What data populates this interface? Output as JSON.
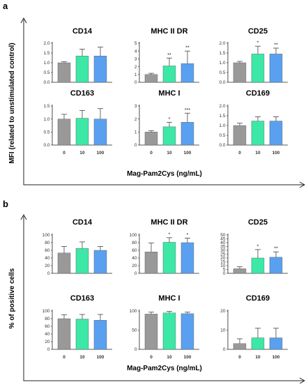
{
  "colors": {
    "control": "#999999",
    "dose10": "#3de8a7",
    "dose100": "#5aa0f0",
    "axis": "#222222",
    "error": "#444444"
  },
  "panels": [
    {
      "letter": "a",
      "ylabel": "MFI (related to unstimulated control)",
      "xlabel": "Mag-Pam2Cys (ng/mL)"
    },
    {
      "letter": "b",
      "ylabel": "% of positive cells",
      "xlabel": "Mag-Pam2Cys (ng/mL)"
    }
  ],
  "chart_data": [
    {
      "type": "bar",
      "panel": "a",
      "title": "CD14",
      "categories": [
        "0",
        "10",
        "100"
      ],
      "values": [
        1.0,
        1.35,
        1.35
      ],
      "errors": [
        0.05,
        0.35,
        0.45
      ],
      "annotations": [
        "",
        "",
        ""
      ],
      "ylim": [
        0,
        2.0
      ],
      "yticks": [
        "0.0",
        "0.5",
        "1.0",
        "1.5",
        "2.0"
      ],
      "ytick_values": [
        0,
        0.5,
        1.0,
        1.5,
        2.0
      ],
      "show_xticks": false
    },
    {
      "type": "bar",
      "panel": "a",
      "title": "MHC II DR",
      "categories": [
        "0",
        "10",
        "100"
      ],
      "values": [
        1.0,
        2.1,
        2.4
      ],
      "errors": [
        0.15,
        1.0,
        1.6
      ],
      "annotations": [
        "",
        "**",
        "**"
      ],
      "ylim": [
        0,
        5
      ],
      "yticks": [
        "0",
        "1",
        "2",
        "3",
        "4",
        "5"
      ],
      "ytick_values": [
        0,
        1,
        2,
        3,
        4,
        5
      ],
      "show_xticks": false
    },
    {
      "type": "bar",
      "panel": "a",
      "title": "CD25",
      "categories": [
        "0",
        "10",
        "100"
      ],
      "values": [
        1.0,
        1.45,
        1.45
      ],
      "errors": [
        0.07,
        0.4,
        0.3
      ],
      "annotations": [
        "",
        "*",
        "**"
      ],
      "ylim": [
        0,
        2.0
      ],
      "yticks": [
        "0.0",
        "0.5",
        "1.0",
        "1.5",
        "2.0"
      ],
      "ytick_values": [
        0,
        0.5,
        1.0,
        1.5,
        2.0
      ],
      "show_xticks": false
    },
    {
      "type": "bar",
      "panel": "a",
      "title": "CD163",
      "categories": [
        "0",
        "10",
        "100"
      ],
      "values": [
        1.0,
        1.03,
        1.0
      ],
      "errors": [
        0.18,
        0.3,
        0.4
      ],
      "annotations": [
        "",
        "",
        ""
      ],
      "ylim": [
        0,
        1.5
      ],
      "yticks": [
        "0.0",
        "0.5",
        "1.0",
        "1.5"
      ],
      "ytick_values": [
        0,
        0.5,
        1.0,
        1.5
      ],
      "show_xticks": true
    },
    {
      "type": "bar",
      "panel": "a",
      "title": "MHC I",
      "categories": [
        "0",
        "10",
        "100"
      ],
      "values": [
        1.0,
        1.4,
        1.75
      ],
      "errors": [
        0.1,
        0.35,
        0.7
      ],
      "annotations": [
        "",
        "*",
        "***"
      ],
      "ylim": [
        0,
        3
      ],
      "yticks": [
        "0",
        "1",
        "2",
        "3"
      ],
      "ytick_values": [
        0,
        1,
        2,
        3
      ],
      "show_xticks": true
    },
    {
      "type": "bar",
      "panel": "a",
      "title": "CD169",
      "categories": [
        "0",
        "10",
        "100"
      ],
      "values": [
        1.0,
        1.23,
        1.23
      ],
      "errors": [
        0.12,
        0.22,
        0.22
      ],
      "annotations": [
        "",
        "",
        ""
      ],
      "ylim": [
        0,
        2.0
      ],
      "yticks": [
        "0.0",
        "0.5",
        "1.0",
        "1.5",
        "2.0"
      ],
      "ytick_values": [
        0,
        0.5,
        1.0,
        1.5,
        2.0
      ],
      "show_xticks": true
    },
    {
      "type": "bar",
      "panel": "b",
      "title": "CD14",
      "categories": [
        "0",
        "10",
        "100"
      ],
      "values": [
        53,
        65,
        60
      ],
      "errors": [
        17,
        17,
        10
      ],
      "annotations": [
        "",
        "",
        ""
      ],
      "ylim": [
        0,
        100
      ],
      "yticks": [
        "0",
        "20",
        "40",
        "60",
        "80",
        "100"
      ],
      "ytick_values": [
        0,
        20,
        40,
        60,
        80,
        100
      ],
      "show_xticks": false
    },
    {
      "type": "bar",
      "panel": "b",
      "title": "MHC II DR",
      "categories": [
        "0",
        "10",
        "100"
      ],
      "values": [
        56,
        81,
        80
      ],
      "errors": [
        23,
        12,
        12
      ],
      "annotations": [
        "",
        "*",
        "*"
      ],
      "ylim": [
        0,
        100
      ],
      "yticks": [
        "0",
        "20",
        "40",
        "60",
        "80",
        "100"
      ],
      "ytick_values": [
        0,
        20,
        40,
        60,
        80,
        100
      ],
      "show_xticks": false
    },
    {
      "type": "bar",
      "panel": "b",
      "title": "CD25",
      "categories": [
        "0",
        "10",
        "100"
      ],
      "values": [
        6,
        20,
        21
      ],
      "errors": [
        2.5,
        11,
        7
      ],
      "annotations": [
        "",
        "*",
        "**"
      ],
      "ylim": [
        0,
        50
      ],
      "yticks": [
        "0",
        "5",
        "10",
        "15",
        "20",
        "25",
        "30",
        "35",
        "40",
        "45",
        "50"
      ],
      "ytick_values": [
        0,
        5,
        10,
        15,
        20,
        25,
        30,
        35,
        40,
        45,
        50
      ],
      "show_xticks": false
    },
    {
      "type": "bar",
      "panel": "b",
      "title": "CD163",
      "categories": [
        "0",
        "10",
        "100"
      ],
      "values": [
        80,
        79,
        76
      ],
      "errors": [
        10,
        12,
        15
      ],
      "annotations": [
        "",
        "",
        ""
      ],
      "ylim": [
        0,
        100
      ],
      "yticks": [
        "0",
        "20",
        "40",
        "60",
        "80",
        "100"
      ],
      "ytick_values": [
        0,
        20,
        40,
        60,
        80,
        100
      ],
      "show_xticks": true
    },
    {
      "type": "bar",
      "panel": "b",
      "title": "MHC I",
      "categories": [
        "0",
        "10",
        "100"
      ],
      "values": [
        92,
        95,
        93
      ],
      "errors": [
        5,
        4,
        4
      ],
      "annotations": [
        "",
        "",
        ""
      ],
      "ylim": [
        0,
        100
      ],
      "yticks": [
        "0",
        "50",
        "100"
      ],
      "ytick_values": [
        0,
        50,
        100
      ],
      "show_xticks": true
    },
    {
      "type": "bar",
      "panel": "b",
      "title": "CD169",
      "categories": [
        "0",
        "10",
        "100"
      ],
      "values": [
        3,
        6,
        6
      ],
      "errors": [
        2.5,
        5,
        5
      ],
      "annotations": [
        "",
        "",
        ""
      ],
      "ylim": [
        0,
        20
      ],
      "yticks": [
        "0",
        "10",
        "20"
      ],
      "ytick_values": [
        0,
        10,
        20
      ],
      "show_xticks": true
    }
  ]
}
